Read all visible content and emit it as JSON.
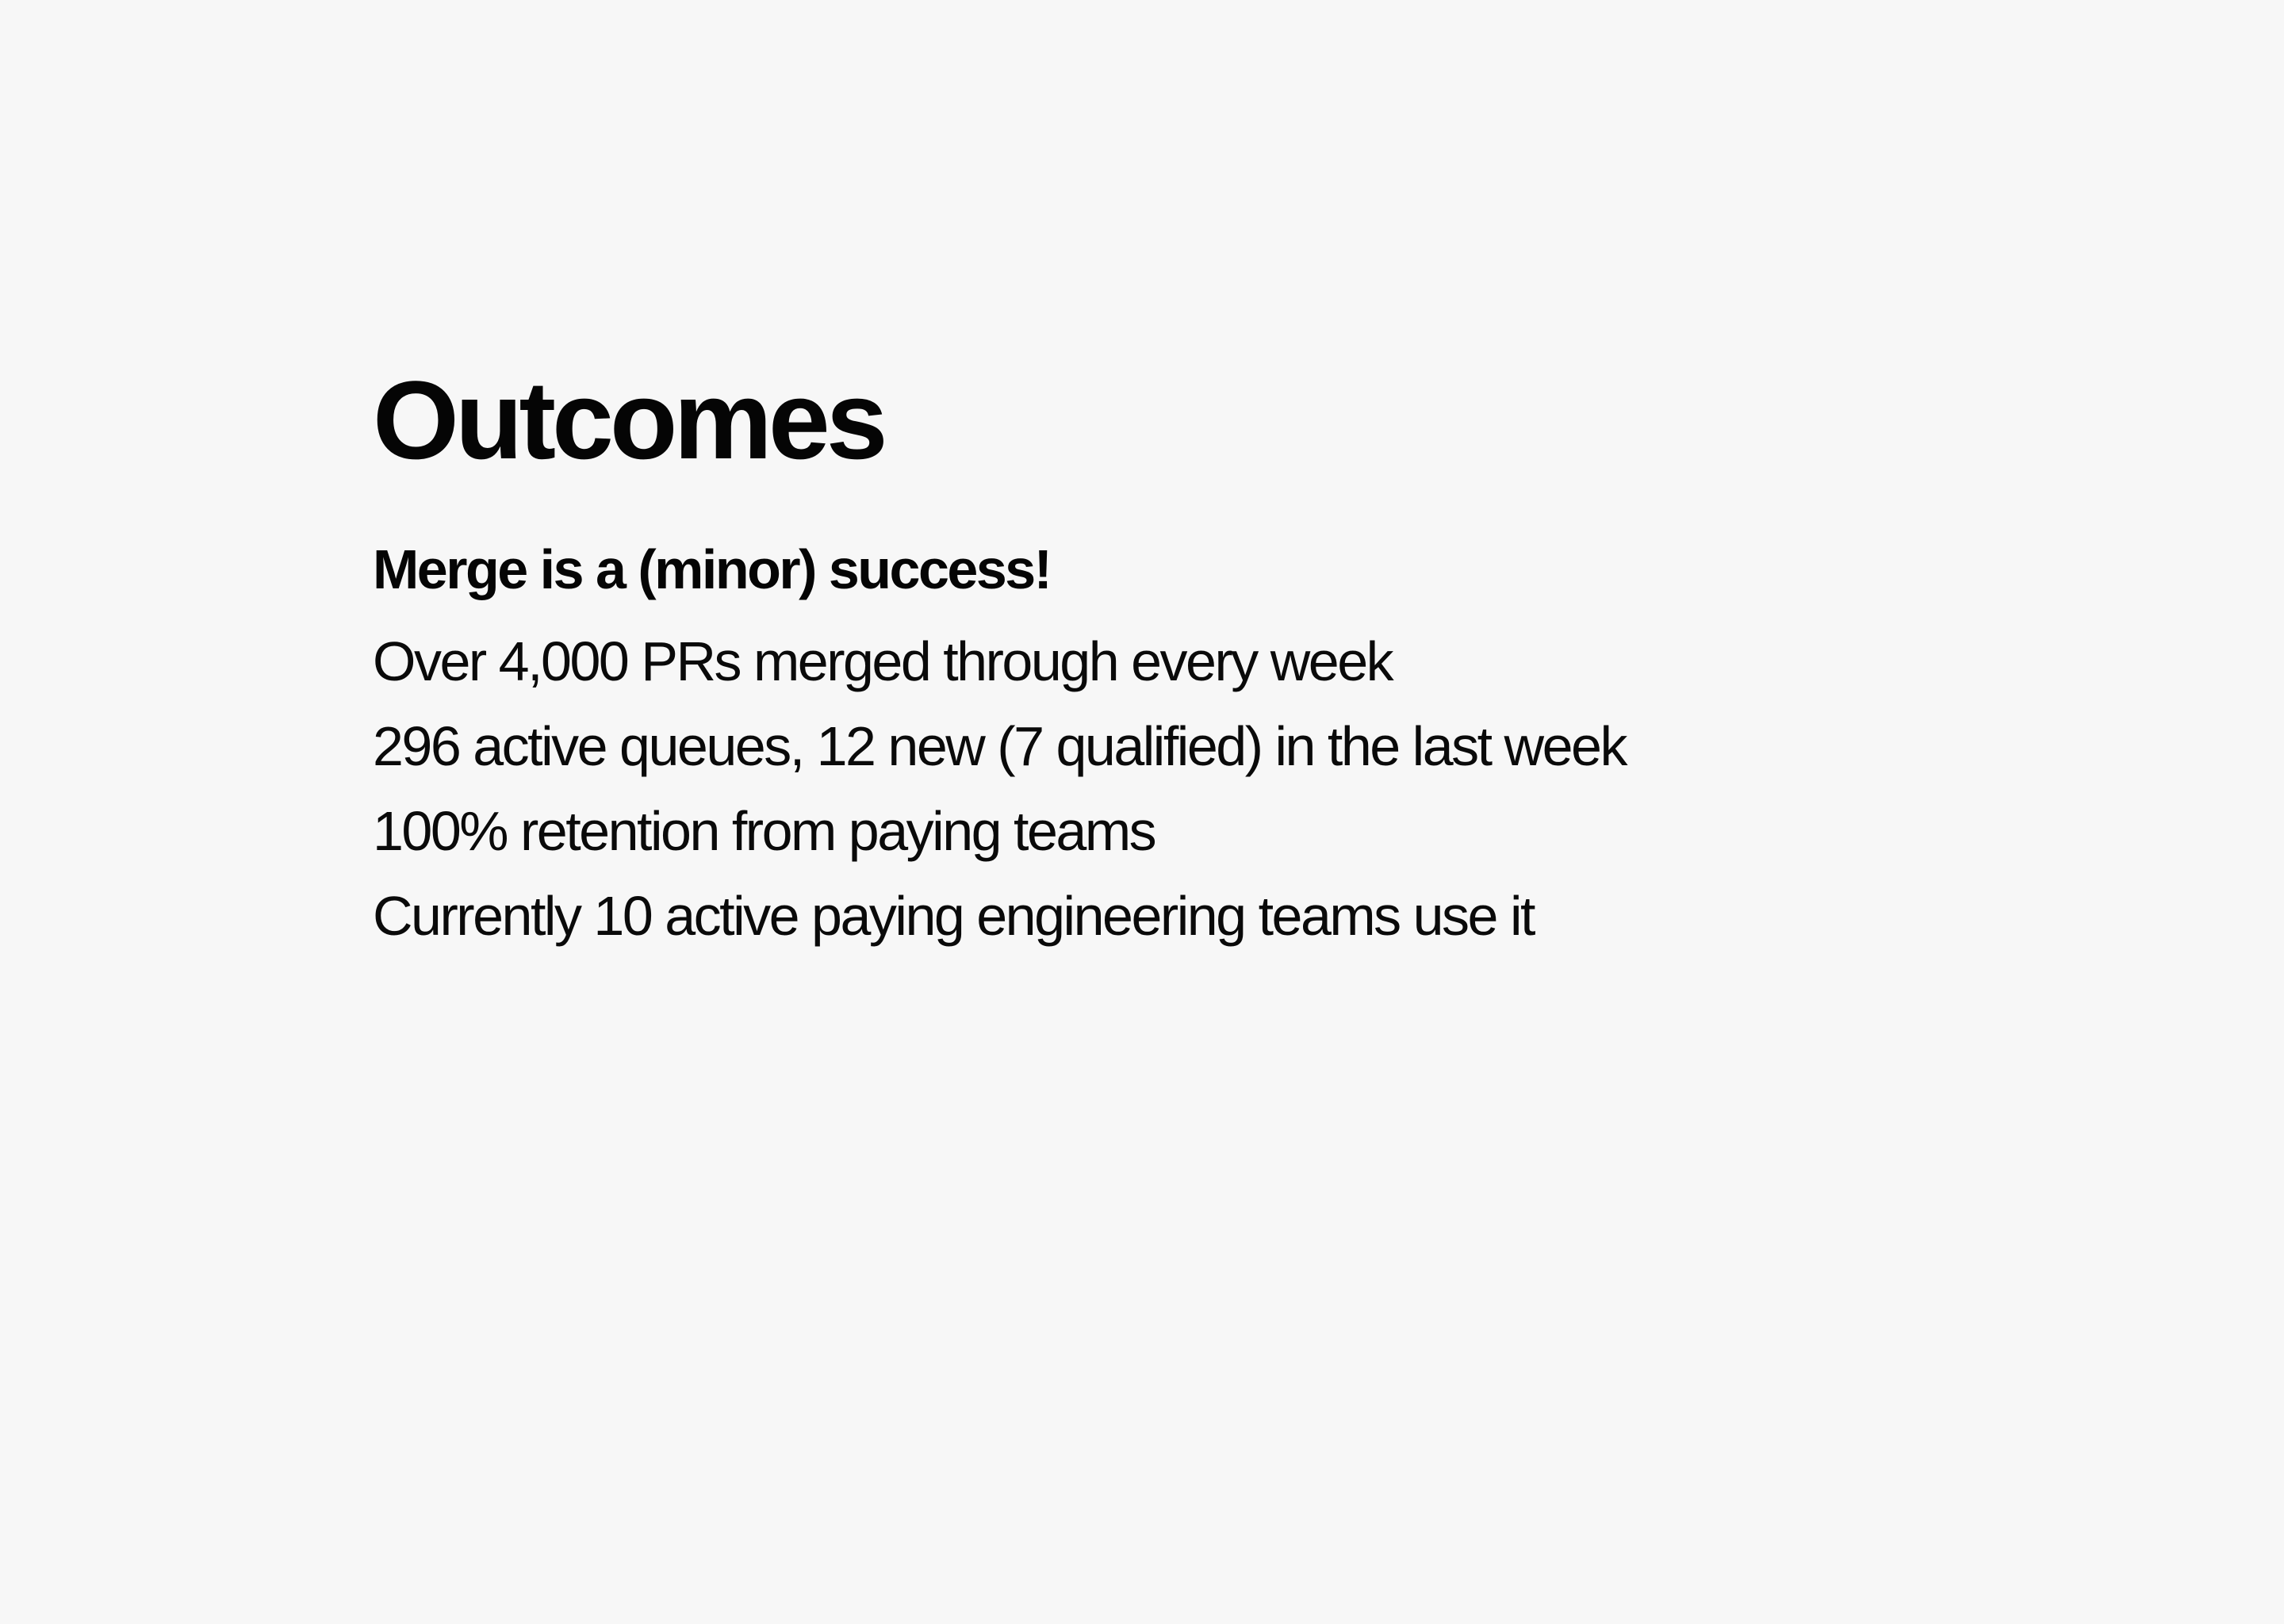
{
  "slide": {
    "title": "Outcomes",
    "subtitle": "Merge is a (minor) success!",
    "lines": [
      "Over 4,000 PRs merged through every week",
      "296 active queues, 12 new (7 qualified) in the last week",
      "100% retention from paying teams",
      "Currently 10 active paying engineering teams use it"
    ]
  },
  "colors": {
    "background": "#f7f7f7",
    "text": "#0a0a0a"
  }
}
